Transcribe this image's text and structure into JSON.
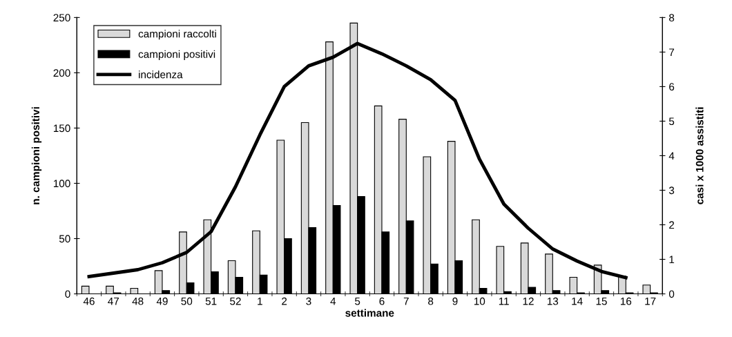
{
  "chart_data": {
    "type": "bar",
    "xlabel": "settimane",
    "ylabel": "n. campioni positivi",
    "y2label": "casi x 1000 assistiti",
    "categories": [
      "46",
      "47",
      "48",
      "49",
      "50",
      "51",
      "52",
      "1",
      "2",
      "3",
      "4",
      "5",
      "6",
      "7",
      "8",
      "9",
      "10",
      "11",
      "12",
      "13",
      "14",
      "15",
      "16",
      "17"
    ],
    "series": [
      {
        "name": "campioni raccolti",
        "color": "#d9d9d9",
        "values": [
          7,
          7,
          5,
          21,
          56,
          67,
          30,
          57,
          139,
          155,
          228,
          245,
          170,
          158,
          124,
          138,
          67,
          43,
          46,
          36,
          15,
          26,
          16,
          8
        ]
      },
      {
        "name": "campioni positivi",
        "color": "#000000",
        "values": [
          0,
          1,
          0,
          3,
          10,
          20,
          15,
          17,
          50,
          60,
          80,
          88,
          56,
          66,
          27,
          30,
          5,
          2,
          6,
          3,
          1,
          3,
          1,
          1
        ]
      },
      {
        "name": "incidenza",
        "type": "line",
        "axis": "y2",
        "color": "#000000",
        "values": [
          0.5,
          0.6,
          0.7,
          0.9,
          1.2,
          1.8,
          3.1,
          4.6,
          6.0,
          6.6,
          6.85,
          7.25,
          6.95,
          6.6,
          6.2,
          5.6,
          3.9,
          2.6,
          1.9,
          1.3,
          0.95,
          0.65,
          0.47,
          null
        ]
      }
    ],
    "ylim": [
      0,
      250
    ],
    "yticks": [
      0,
      50,
      100,
      150,
      200,
      250
    ],
    "y2lim": [
      0,
      8
    ],
    "y2ticks": [
      0,
      1,
      2,
      3,
      4,
      5,
      6,
      7,
      8
    ],
    "grid": false,
    "legend": "top left",
    "marker": "none",
    "line_style": "solid"
  }
}
